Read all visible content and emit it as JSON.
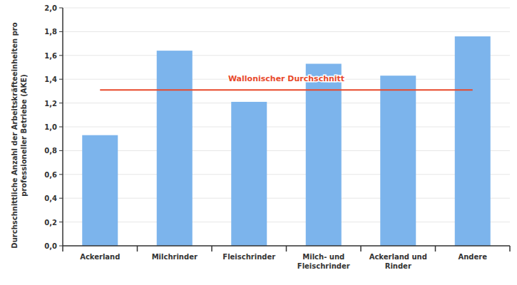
{
  "chart_data": {
    "type": "bar",
    "y_label": "Durchschnittliche Anzahl der Arbeitskräfteeinheiten pro professioneller Betriebe (AKE)",
    "categories": [
      "Ackerland",
      "Milchrinder",
      "Fleischrinder",
      "Milch- und Fleischrinder",
      "Ackerland und Rinder",
      "Andere"
    ],
    "values": [
      0.93,
      1.64,
      1.21,
      1.53,
      1.43,
      1.76
    ],
    "color": "#7cb4ec",
    "annotations": [
      {
        "text": "Wallonischer Durchschnitt",
        "value": 1.31
      }
    ],
    "ylim": [
      0,
      2
    ],
    "yticks": [
      {
        "value": 0,
        "label": "0,0"
      },
      {
        "value": 0.2,
        "label": "0,2"
      },
      {
        "value": 0.4,
        "label": "0,4"
      },
      {
        "value": 0.6,
        "label": "0,6"
      },
      {
        "value": 0.8,
        "label": "0,8"
      },
      {
        "value": 1.0,
        "label": "1,0"
      },
      {
        "value": 1.2,
        "label": "1,2"
      },
      {
        "value": 1.4,
        "label": "1,4"
      },
      {
        "value": 1.6,
        "label": "1,6"
      },
      {
        "value": 1.8,
        "label": "1,8"
      },
      {
        "value": 2.0,
        "label": "2,0"
      }
    ],
    "grid": true
  }
}
